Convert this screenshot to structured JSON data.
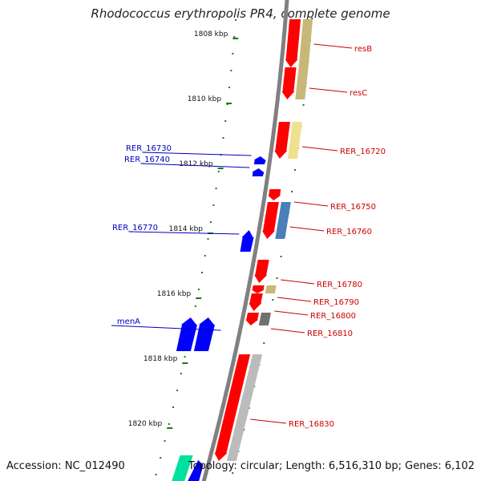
{
  "title": "Rhodococcus erythropolis PR4, complete genome",
  "footer": {
    "accession": "Accession: NC_012490",
    "summary": "Topology: circular; Length: 6,516,310 bp; Genes: 6,102"
  },
  "colors": {
    "backbone": "#808080",
    "tick": "#1a7a1a",
    "forward_gene": "#ff0000",
    "reverse_gene": "#0000ff",
    "forward_label": "#cc0000",
    "reverse_label": "#0000bb"
  },
  "ruler": [
    "1808 kbp",
    "1810 kbp",
    "1812 kbp",
    "1814 kbp",
    "1816 kbp",
    "1818 kbp",
    "1820 kbp"
  ],
  "forward_genes": [
    {
      "label": "resB",
      "protein_color": "#c8b878"
    },
    {
      "label": "resC",
      "protein_color": "#c8b878"
    },
    {
      "label": "RER_16720",
      "protein_color": "#f0e090"
    },
    {
      "label": "RER_16750",
      "protein_color": ""
    },
    {
      "label": "RER_16760",
      "protein_color": "#4a7fb8"
    },
    {
      "label": "RER_16780",
      "protein_color": ""
    },
    {
      "label": "RER_16790",
      "protein_color": "#c8b878"
    },
    {
      "label": "RER_16800",
      "protein_color": ""
    },
    {
      "label": "RER_16810",
      "protein_color": "#707070"
    },
    {
      "label": "RER_16830",
      "protein_color": "#bbbbbb"
    }
  ],
  "reverse_genes": [
    {
      "label": "RER_16730"
    },
    {
      "label": "RER_16740"
    },
    {
      "label": "RER_16770"
    },
    {
      "label": "menA"
    }
  ]
}
